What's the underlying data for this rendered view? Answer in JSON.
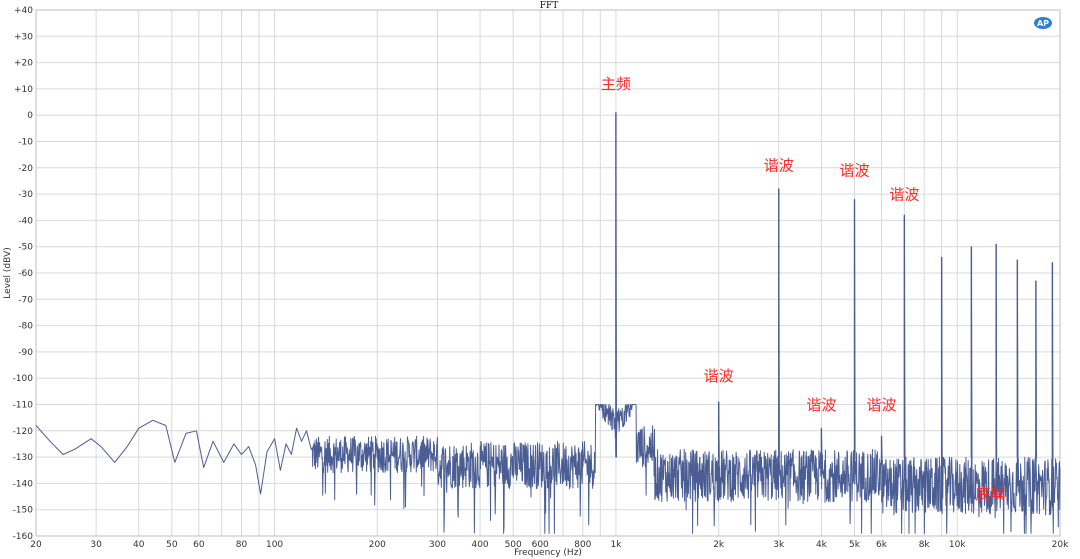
{
  "colors": {
    "trace": "#4b5e94",
    "grid": "#d9d9d9",
    "annotation": "#ff2a2a",
    "logo": "#2c7fd6"
  },
  "logo_icon": "ap-logo-icon",
  "chart_data": {
    "type": "line",
    "title": "FFT",
    "xlabel": "Frequency (Hz)",
    "ylabel": "Level (dBV)",
    "xscale": "log",
    "xlim": [
      20,
      20000
    ],
    "ylim": [
      -160,
      40
    ],
    "grid": true,
    "y_ticks": [
      40,
      30,
      20,
      10,
      0,
      -10,
      -20,
      -30,
      -40,
      -50,
      -60,
      -70,
      -80,
      -90,
      -100,
      -110,
      -120,
      -130,
      -140,
      -150,
      -160
    ],
    "y_tick_labels": [
      "+40",
      "+30",
      "+20",
      "+10",
      "0",
      "-10",
      "-20",
      "-30",
      "-40",
      "-50",
      "-60",
      "-70",
      "-80",
      "-90",
      "-100",
      "-110",
      "-120",
      "-130",
      "-140",
      "-150",
      "-160"
    ],
    "x_ticks": [
      20,
      30,
      40,
      50,
      60,
      80,
      100,
      200,
      300,
      400,
      500,
      600,
      800,
      1000,
      2000,
      3000,
      4000,
      5000,
      6000,
      8000,
      10000,
      20000
    ],
    "x_tick_labels": [
      "20",
      "30",
      "40",
      "50",
      "60",
      "80",
      "100",
      "200",
      "300",
      "400",
      "500",
      "600",
      "800",
      "1k",
      "2k",
      "3k",
      "4k",
      "5k",
      "6k",
      "8k",
      "10k",
      "20k"
    ],
    "peaks": [
      {
        "x": 1000,
        "y": 1
      },
      {
        "x": 2000,
        "y": -109
      },
      {
        "x": 3000,
        "y": -28
      },
      {
        "x": 4000,
        "y": -119
      },
      {
        "x": 5000,
        "y": -32
      },
      {
        "x": 6000,
        "y": -122
      },
      {
        "x": 7000,
        "y": -38
      },
      {
        "x": 9000,
        "y": -54
      },
      {
        "x": 11000,
        "y": -50
      },
      {
        "x": 13000,
        "y": -49
      },
      {
        "x": 15000,
        "y": -55
      },
      {
        "x": 17000,
        "y": -63
      },
      {
        "x": 19000,
        "y": -56
      }
    ],
    "low_freq_curve": [
      {
        "x": 20,
        "y": -118
      },
      {
        "x": 22,
        "y": -124
      },
      {
        "x": 24,
        "y": -129
      },
      {
        "x": 26,
        "y": -127
      },
      {
        "x": 29,
        "y": -123
      },
      {
        "x": 31,
        "y": -126
      },
      {
        "x": 34,
        "y": -132
      },
      {
        "x": 37,
        "y": -126
      },
      {
        "x": 40,
        "y": -119
      },
      {
        "x": 44,
        "y": -116
      },
      {
        "x": 48,
        "y": -118
      },
      {
        "x": 51,
        "y": -132
      },
      {
        "x": 55,
        "y": -121
      },
      {
        "x": 59,
        "y": -120
      },
      {
        "x": 62,
        "y": -134
      },
      {
        "x": 66,
        "y": -124
      },
      {
        "x": 71,
        "y": -132
      },
      {
        "x": 76,
        "y": -125
      },
      {
        "x": 80,
        "y": -129
      },
      {
        "x": 84,
        "y": -126
      },
      {
        "x": 88,
        "y": -133
      },
      {
        "x": 91,
        "y": -144
      },
      {
        "x": 95,
        "y": -128
      },
      {
        "x": 100,
        "y": -123
      },
      {
        "x": 104,
        "y": -135
      },
      {
        "x": 108,
        "y": -125
      },
      {
        "x": 112,
        "y": -129
      },
      {
        "x": 116,
        "y": -119
      },
      {
        "x": 120,
        "y": -124
      },
      {
        "x": 124,
        "y": -120
      },
      {
        "x": 128,
        "y": -127
      }
    ],
    "annotations": [
      {
        "text": "主频",
        "x": 1000,
        "y": 10
      },
      {
        "text": "谐波",
        "x": 3000,
        "y": -21
      },
      {
        "text": "谐波",
        "x": 5000,
        "y": -23
      },
      {
        "text": "谐波",
        "x": 7000,
        "y": -32
      },
      {
        "text": "谐波",
        "x": 2000,
        "y": -101
      },
      {
        "text": "谐波",
        "x": 4000,
        "y": -112
      },
      {
        "text": "谐波",
        "x": 6000,
        "y": -112
      },
      {
        "text": "底噪",
        "x": 12500,
        "y": -146
      }
    ]
  }
}
